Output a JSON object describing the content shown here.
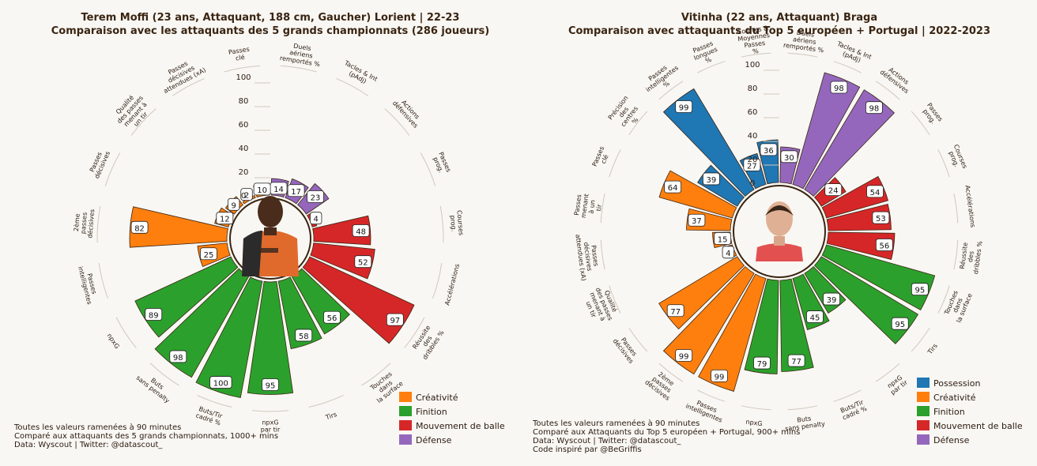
{
  "colors": {
    "background": "#f9f7f3",
    "Possession": "#1f77b4",
    "Créativité": "#ff7f0e",
    "Finition": "#2ca02c",
    "Mouvement de balle": "#d62728",
    "Défense": "#9467bd",
    "bar_edge": "#3a2512"
  },
  "chart_data": [
    {
      "type": "radial_bar",
      "title": "Terem Moffi (23 ans, Attaquant, 188 cm, Gaucher) Lorient | 22-23",
      "subtitle": "Comparaison avec les attaquants des 5 grands championnats (286 joueurs)",
      "scale_ticks": [
        "100",
        "80",
        "60",
        "40",
        "20",
        "0"
      ],
      "ylim": [
        0,
        100
      ],
      "player_photo": "player-photo-moffi",
      "footnote": [
        "Toutes les valeurs ramenées à 90 minutes",
        "Comparé aux attaquants des 5 grands championnats, 1000+ mins",
        "Data: Wyscout | Twitter: @datascout_"
      ],
      "legend": [
        "Créativité",
        "Finition",
        "Mouvement de balle",
        "Défense"
      ],
      "bars": [
        {
          "label": "Duels\naériens\nremportés %",
          "value": 14,
          "group": "Défense"
        },
        {
          "label": "Tacles & Int\n(pAdj)",
          "value": 17,
          "group": "Défense"
        },
        {
          "label": "Actions\ndéfensives",
          "value": 23,
          "group": "Défense"
        },
        {
          "label": "Passes\nprog.",
          "value": 4,
          "group": "Mouvement de balle"
        },
        {
          "label": "Courses\nprog.",
          "value": 48,
          "group": "Mouvement de balle"
        },
        {
          "label": "Accélérations",
          "value": 52,
          "group": "Mouvement de balle"
        },
        {
          "label": "Réussite\ndes\ndribbles %",
          "value": 97,
          "group": "Mouvement de balle"
        },
        {
          "label": "Touches\ndans\nla surface",
          "value": 56,
          "group": "Finition"
        },
        {
          "label": "Tirs",
          "value": 58,
          "group": "Finition"
        },
        {
          "label": "npxG\npar tir",
          "value": 95,
          "group": "Finition"
        },
        {
          "label": "Buts/Tir\ncadré %",
          "value": 100,
          "group": "Finition"
        },
        {
          "label": "Buts\nsans penalty",
          "value": 98,
          "group": "Finition"
        },
        {
          "label": "npxG",
          "value": 89,
          "group": "Finition"
        },
        {
          "label": "Passes\nintelligentes",
          "value": 25,
          "group": "Créativité"
        },
        {
          "label": "2ème\npasses\ndécisives",
          "value": 82,
          "group": "Créativité"
        },
        {
          "label": "Passes\ndécisives",
          "value": 12,
          "group": "Créativité"
        },
        {
          "label": "Qualité\ndes passes\nmenant à\nun tir",
          "value": 9,
          "group": "Créativité"
        },
        {
          "label": "Passes\ndécisives\nattendues (xA)",
          "value": 2,
          "group": "Créativité"
        },
        {
          "label": "Passes\nclé",
          "value": 10,
          "group": "Créativité"
        }
      ]
    },
    {
      "type": "radial_bar",
      "title": "Vitinha (22 ans, Attaquant) Braga",
      "subtitle": "Comparaison avec attaquants du Top 5 européen + Portugal | 2022-2023",
      "scale_ticks": [
        "100",
        "80",
        "60",
        "40",
        "20",
        "0"
      ],
      "ylim": [
        0,
        100
      ],
      "player_photo": "player-photo-vitinha",
      "footnote": [
        "Toutes les valeurs ramenées à 90 minutes",
        "Comparé aux Attaquants du Top 5 européen + Portugal, 900+ mins",
        "Data: Wyscout | Twitter: @datascout_",
        "Code inspiré par @BeGriffis"
      ],
      "legend": [
        "Possession",
        "Créativité",
        "Finition",
        "Mouvement de balle",
        "Défense"
      ],
      "bars": [
        {
          "label": "Duels\naériens\nremportés %",
          "value": 30,
          "group": "Défense"
        },
        {
          "label": "Tacles & Int\n(pAdj)",
          "value": 98,
          "group": "Défense"
        },
        {
          "label": "Actions\ndéfensives",
          "value": 98,
          "group": "Défense"
        },
        {
          "label": "Passes\nprog.",
          "value": 24,
          "group": "Mouvement de balle"
        },
        {
          "label": "Courses\nprog.",
          "value": 54,
          "group": "Mouvement de balle"
        },
        {
          "label": "Accélérations",
          "value": 53,
          "group": "Mouvement de balle"
        },
        {
          "label": "Réussite\ndes\ndribbles %",
          "value": 56,
          "group": "Mouvement de balle"
        },
        {
          "label": "Touches\ndans\nla surface",
          "value": 95,
          "group": "Finition"
        },
        {
          "label": "Tirs",
          "value": 95,
          "group": "Finition"
        },
        {
          "label": "npxG\npar tir",
          "value": 39,
          "group": "Finition"
        },
        {
          "label": "Buts/Tir\ncadré %",
          "value": 45,
          "group": "Finition"
        },
        {
          "label": "Buts\nsans penalty",
          "value": 77,
          "group": "Finition"
        },
        {
          "label": "npxG",
          "value": 79,
          "group": "Finition"
        },
        {
          "label": "Passes\nintelligentes",
          "value": 99,
          "group": "Créativité"
        },
        {
          "label": "2ème\npasses\ndécisives",
          "value": 99,
          "group": "Créativité"
        },
        {
          "label": "Passes\ndécisives",
          "value": 77,
          "group": "Créativité"
        },
        {
          "label": "Qualité\ndes passes\nmenant à\nun tir",
          "value": 4,
          "group": "Créativité"
        },
        {
          "label": "Passes\ndécisives\nattendues (xA)",
          "value": 15,
          "group": "Créativité"
        },
        {
          "label": "Passes\nmenant\nà un\ntir",
          "value": 37,
          "group": "Créativité"
        },
        {
          "label": "Passes\nclé",
          "value": 64,
          "group": "Créativité"
        },
        {
          "label": "Précision\ndes\ncentres\n%",
          "value": 39,
          "group": "Possession"
        },
        {
          "label": "Passes\nintelligentes\n%",
          "value": 99,
          "group": "Possession"
        },
        {
          "label": "Passes\nlongues\n%",
          "value": 27,
          "group": "Possession"
        },
        {
          "label": "Courtes &\nMoyennes\nPasses\n%",
          "value": 36,
          "group": "Possession"
        }
      ]
    }
  ]
}
